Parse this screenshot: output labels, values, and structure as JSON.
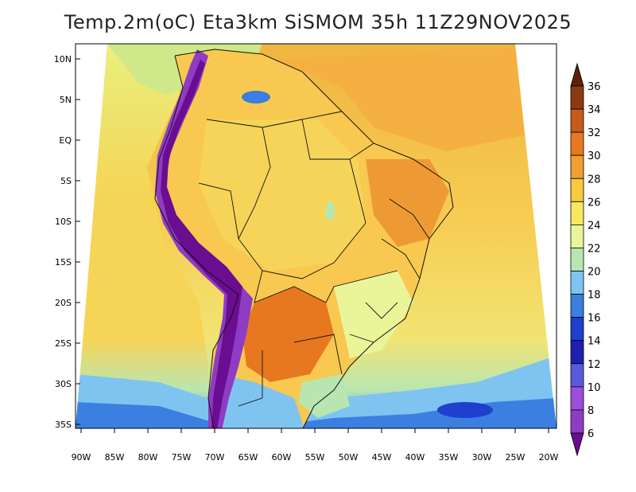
{
  "title": "Temp.2m(oC) Eta3km SiSMOM 35h 11Z29NOV2025",
  "axes": {
    "lat_labels": [
      "10N",
      "5N",
      "EQ",
      "5S",
      "10S",
      "15S",
      "20S",
      "25S",
      "30S",
      "35S"
    ],
    "lon_labels": [
      "90W",
      "85W",
      "80W",
      "75W",
      "70W",
      "65W",
      "60W",
      "55W",
      "50W",
      "45W",
      "40W",
      "35W",
      "30W",
      "25W",
      "20W"
    ]
  },
  "colorbar": {
    "labels": [
      "6",
      "8",
      "10",
      "12",
      "14",
      "16",
      "18",
      "20",
      "22",
      "24",
      "26",
      "28",
      "30",
      "32",
      "34",
      "36"
    ],
    "colors": [
      "#6a0d91",
      "#8e3cc4",
      "#9b4fdc",
      "#5a5adc",
      "#1f1fb0",
      "#1f3fcf",
      "#3b7fe0",
      "#7fc4f0",
      "#b9e6b0",
      "#eaf59a",
      "#f8e860",
      "#f8c840",
      "#f0a030",
      "#e87820",
      "#c85a1a",
      "#8b3a12",
      "#5a2208"
    ]
  },
  "legend_colors": {
    "ocean_warm": "#f4b43c",
    "ocean_mid": "#f8d85a",
    "ocean_cool": "#e0f080",
    "ocean_cold": "#3b7fe0",
    "andes": "#6a0d91",
    "land": "#f8c850"
  }
}
